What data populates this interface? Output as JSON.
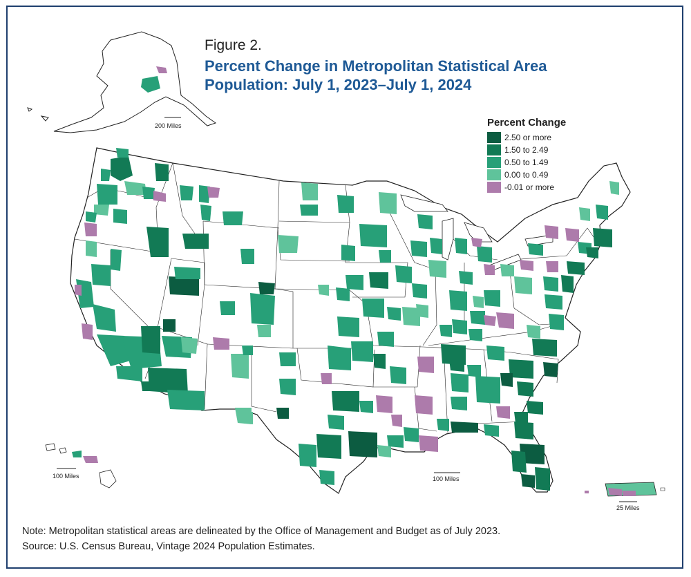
{
  "figure_label": "Figure 2.",
  "title_line1": "Percent Change in Metropolitan Statistical Area",
  "title_line2": "Population: July 1, 2023–July 1, 2024",
  "legend": {
    "title": "Percent Change",
    "items": [
      {
        "label": "2.50 or more",
        "color": "#0c5c41"
      },
      {
        "label": "1.50 to 2.49",
        "color": "#127a55"
      },
      {
        "label": "0.50 to 1.49",
        "color": "#27a078"
      },
      {
        "label": "0.00 to 0.49",
        "color": "#5fc39b"
      },
      {
        "label": "-0.01 or more",
        "color": "#ad7bab"
      }
    ]
  },
  "scale_bars": {
    "alaska": "200 Miles",
    "hawaii": "100 Miles",
    "conus": "100 Miles",
    "puerto_rico": "25 Miles"
  },
  "note": "Note: Metropolitan statistical areas are delineated by the Office of Management and Budget as of July 2023.",
  "source": "Source: U.S. Census Bureau, Vintage 2024 Population Estimates."
}
